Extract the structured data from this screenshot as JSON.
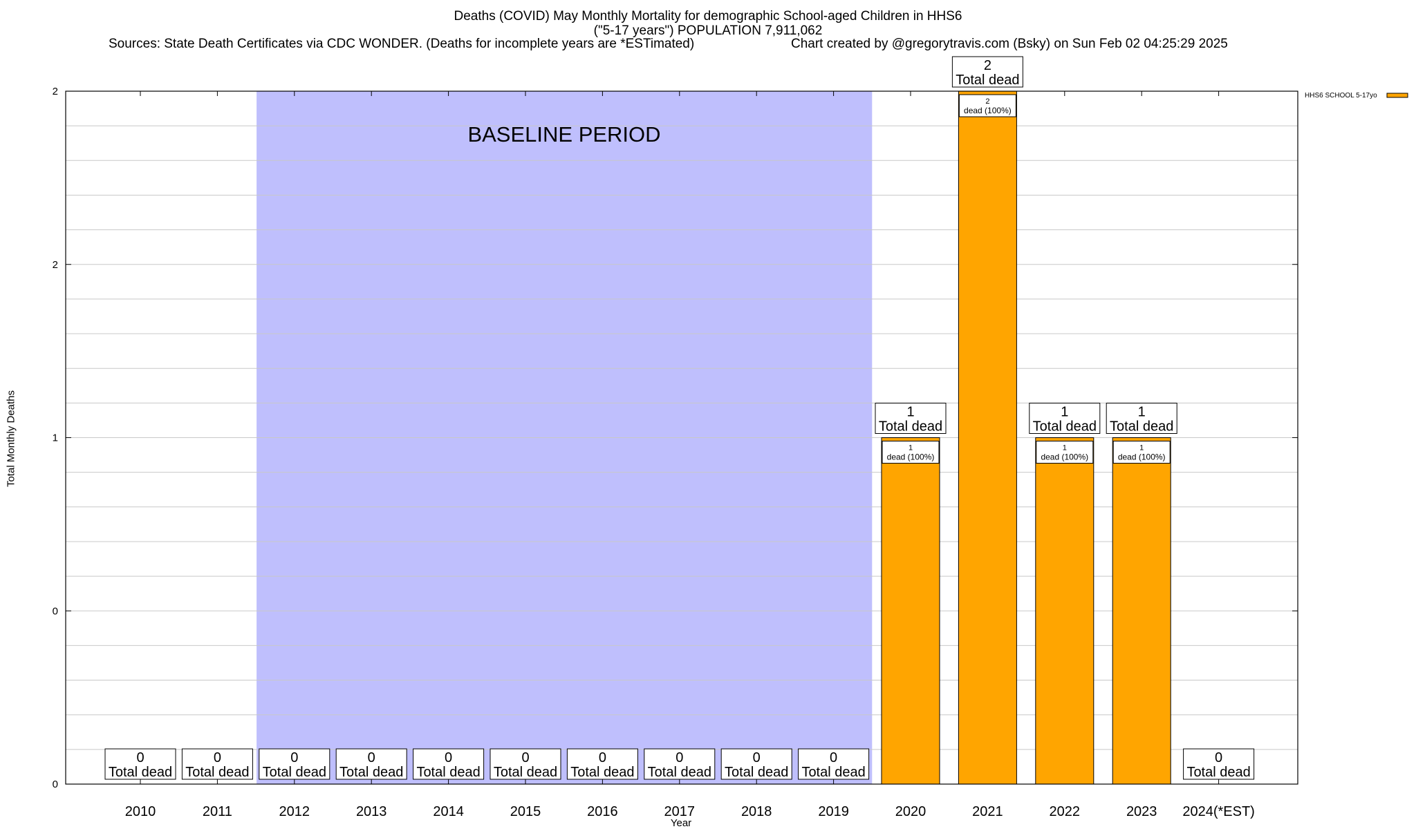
{
  "title": {
    "line1": "Deaths (COVID) May Monthly Mortality for demographic School-aged Children in HHS6",
    "line2": "(\"5-17 years\") POPULATION 7,911,062",
    "sources": "Sources: State Death Certificates via CDC WONDER. (Deaths for incomplete years are *ESTimated)",
    "credit": "Chart created by @gregorytravis.com (Bsky) on Sun Feb 02 04:25:29 2025"
  },
  "chart_data": {
    "type": "bar",
    "xlabel": "Year",
    "ylabel": "Total Monthly Deaths",
    "categories": [
      "2010",
      "2011",
      "2012",
      "2013",
      "2014",
      "2015",
      "2016",
      "2017",
      "2018",
      "2019",
      "2020",
      "2021",
      "2022",
      "2023",
      "2024(*EST)"
    ],
    "series": [
      {
        "name": "HHS6 SCHOOL 5-17yo",
        "values": [
          0,
          0,
          0,
          0,
          0,
          0,
          0,
          0,
          0,
          0,
          1,
          2,
          1,
          1,
          0
        ]
      }
    ],
    "y_tick_labels": [
      "0",
      "0",
      "1",
      "2",
      "2"
    ],
    "ylim": [
      0,
      2
    ],
    "total_label": "Total dead",
    "bar_label_suffix": "dead (100%)",
    "baseline": {
      "label": "BASELINE PERIOD",
      "from": "2012",
      "to": "2019",
      "color": "#bfbffd"
    },
    "bar_color": "#ffa500",
    "legend_position": "top-right",
    "grid": true
  }
}
